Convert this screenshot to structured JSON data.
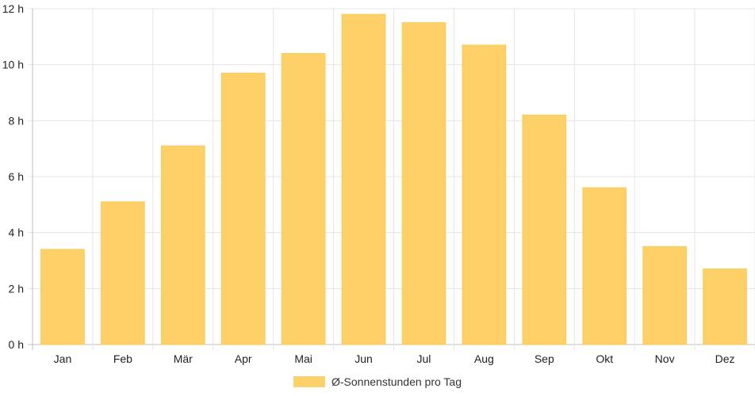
{
  "chart_data": {
    "type": "bar",
    "categories": [
      "Jan",
      "Feb",
      "Mär",
      "Apr",
      "Mai",
      "Jun",
      "Jul",
      "Aug",
      "Sep",
      "Okt",
      "Nov",
      "Dez"
    ],
    "series": [
      {
        "name": "Ø-Sonnenstunden pro Tag",
        "values": [
          3.4,
          5.1,
          7.1,
          9.7,
          10.4,
          11.8,
          11.5,
          10.7,
          8.2,
          5.6,
          3.5,
          2.7
        ],
        "color": "#fdd068"
      }
    ],
    "y_ticks": [
      "0 h",
      "2 h",
      "4 h",
      "6 h",
      "8 h",
      "10 h",
      "12 h"
    ],
    "ylim": [
      0,
      12
    ],
    "grid": true,
    "legend_position": "bottom"
  }
}
